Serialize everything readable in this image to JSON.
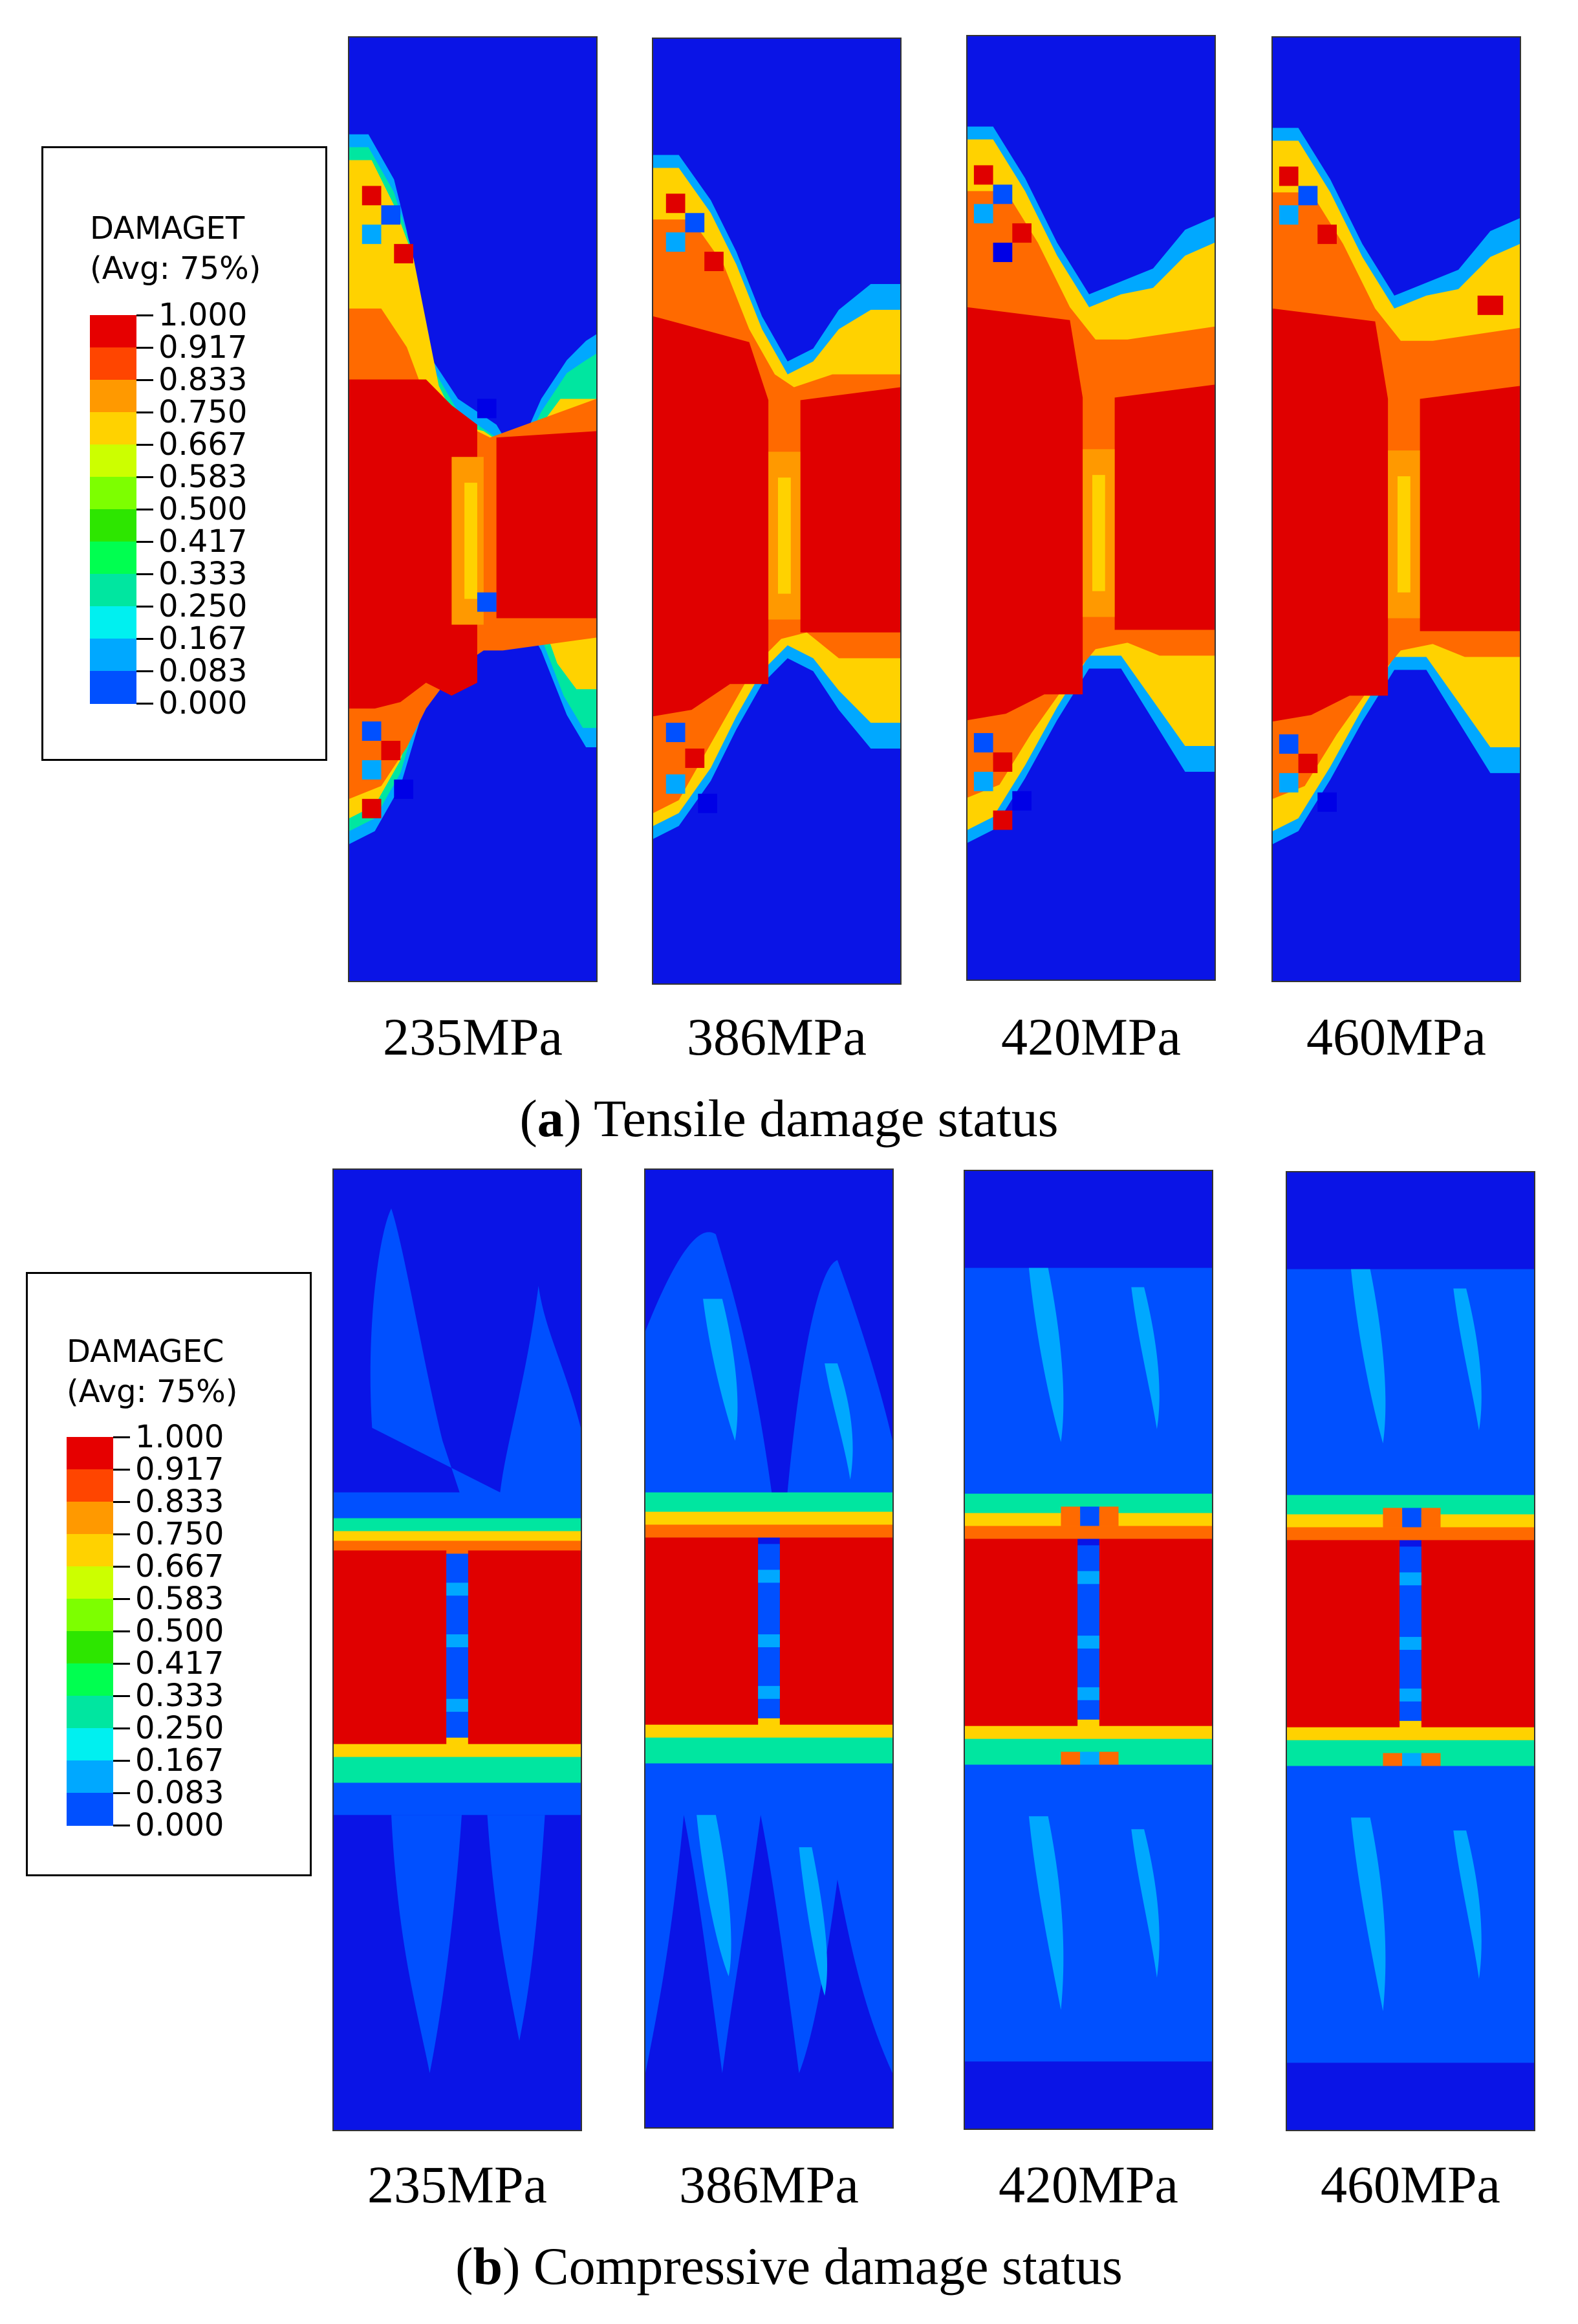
{
  "section_a": {
    "legend": {
      "title": "DAMAGET",
      "subtitle": "(Avg: 75%)",
      "levels": [
        "1.000",
        "0.917",
        "0.833",
        "0.750",
        "0.667",
        "0.583",
        "0.500",
        "0.417",
        "0.333",
        "0.250",
        "0.167",
        "0.083",
        "0.000"
      ]
    },
    "panels": [
      {
        "label": "235MPa"
      },
      {
        "label": "386MPa"
      },
      {
        "label": "420MPa"
      },
      {
        "label": "460MPa"
      }
    ],
    "caption_letter": "a",
    "caption_text": " Tensile damage status"
  },
  "section_b": {
    "legend": {
      "title": "DAMAGEC",
      "subtitle": "(Avg: 75%)",
      "levels": [
        "1.000",
        "0.917",
        "0.833",
        "0.750",
        "0.667",
        "0.583",
        "0.500",
        "0.417",
        "0.333",
        "0.250",
        "0.167",
        "0.083",
        "0.000"
      ]
    },
    "panels": [
      {
        "label": "235MPa"
      },
      {
        "label": "386MPa"
      },
      {
        "label": "420MPa"
      },
      {
        "label": "460MPa"
      }
    ],
    "caption_letter": "b",
    "caption_text": " Compressive damage status"
  },
  "colors": {
    "band_colors": [
      "#e60000",
      "#ff4500",
      "#ff9900",
      "#ffd200",
      "#ccff00",
      "#7dff00",
      "#2de600",
      "#00ff50",
      "#00e6a0",
      "#00f0f0",
      "#00a8ff",
      "#0050ff",
      "#0000e6"
    ],
    "background_blue": "#0a14e6",
    "damage_red": "#e00000"
  }
}
